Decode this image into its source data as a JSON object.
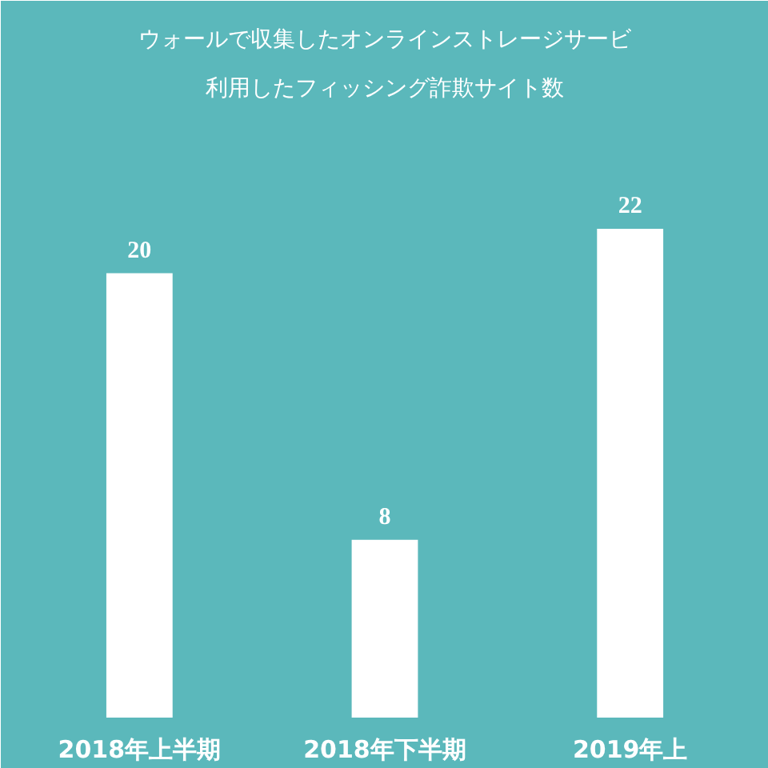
{
  "chart_data": {
    "type": "bar",
    "title": "ウォールで収集したオンラインストレージサービ",
    "subtitle": "利用したフィッシング詐欺サイト数",
    "categories": [
      "2018年上半期",
      "2018年下半期",
      "2019年上"
    ],
    "values": [
      20,
      8,
      22
    ],
    "color": "#ffffff",
    "data_labels": true,
    "grid": false
  }
}
